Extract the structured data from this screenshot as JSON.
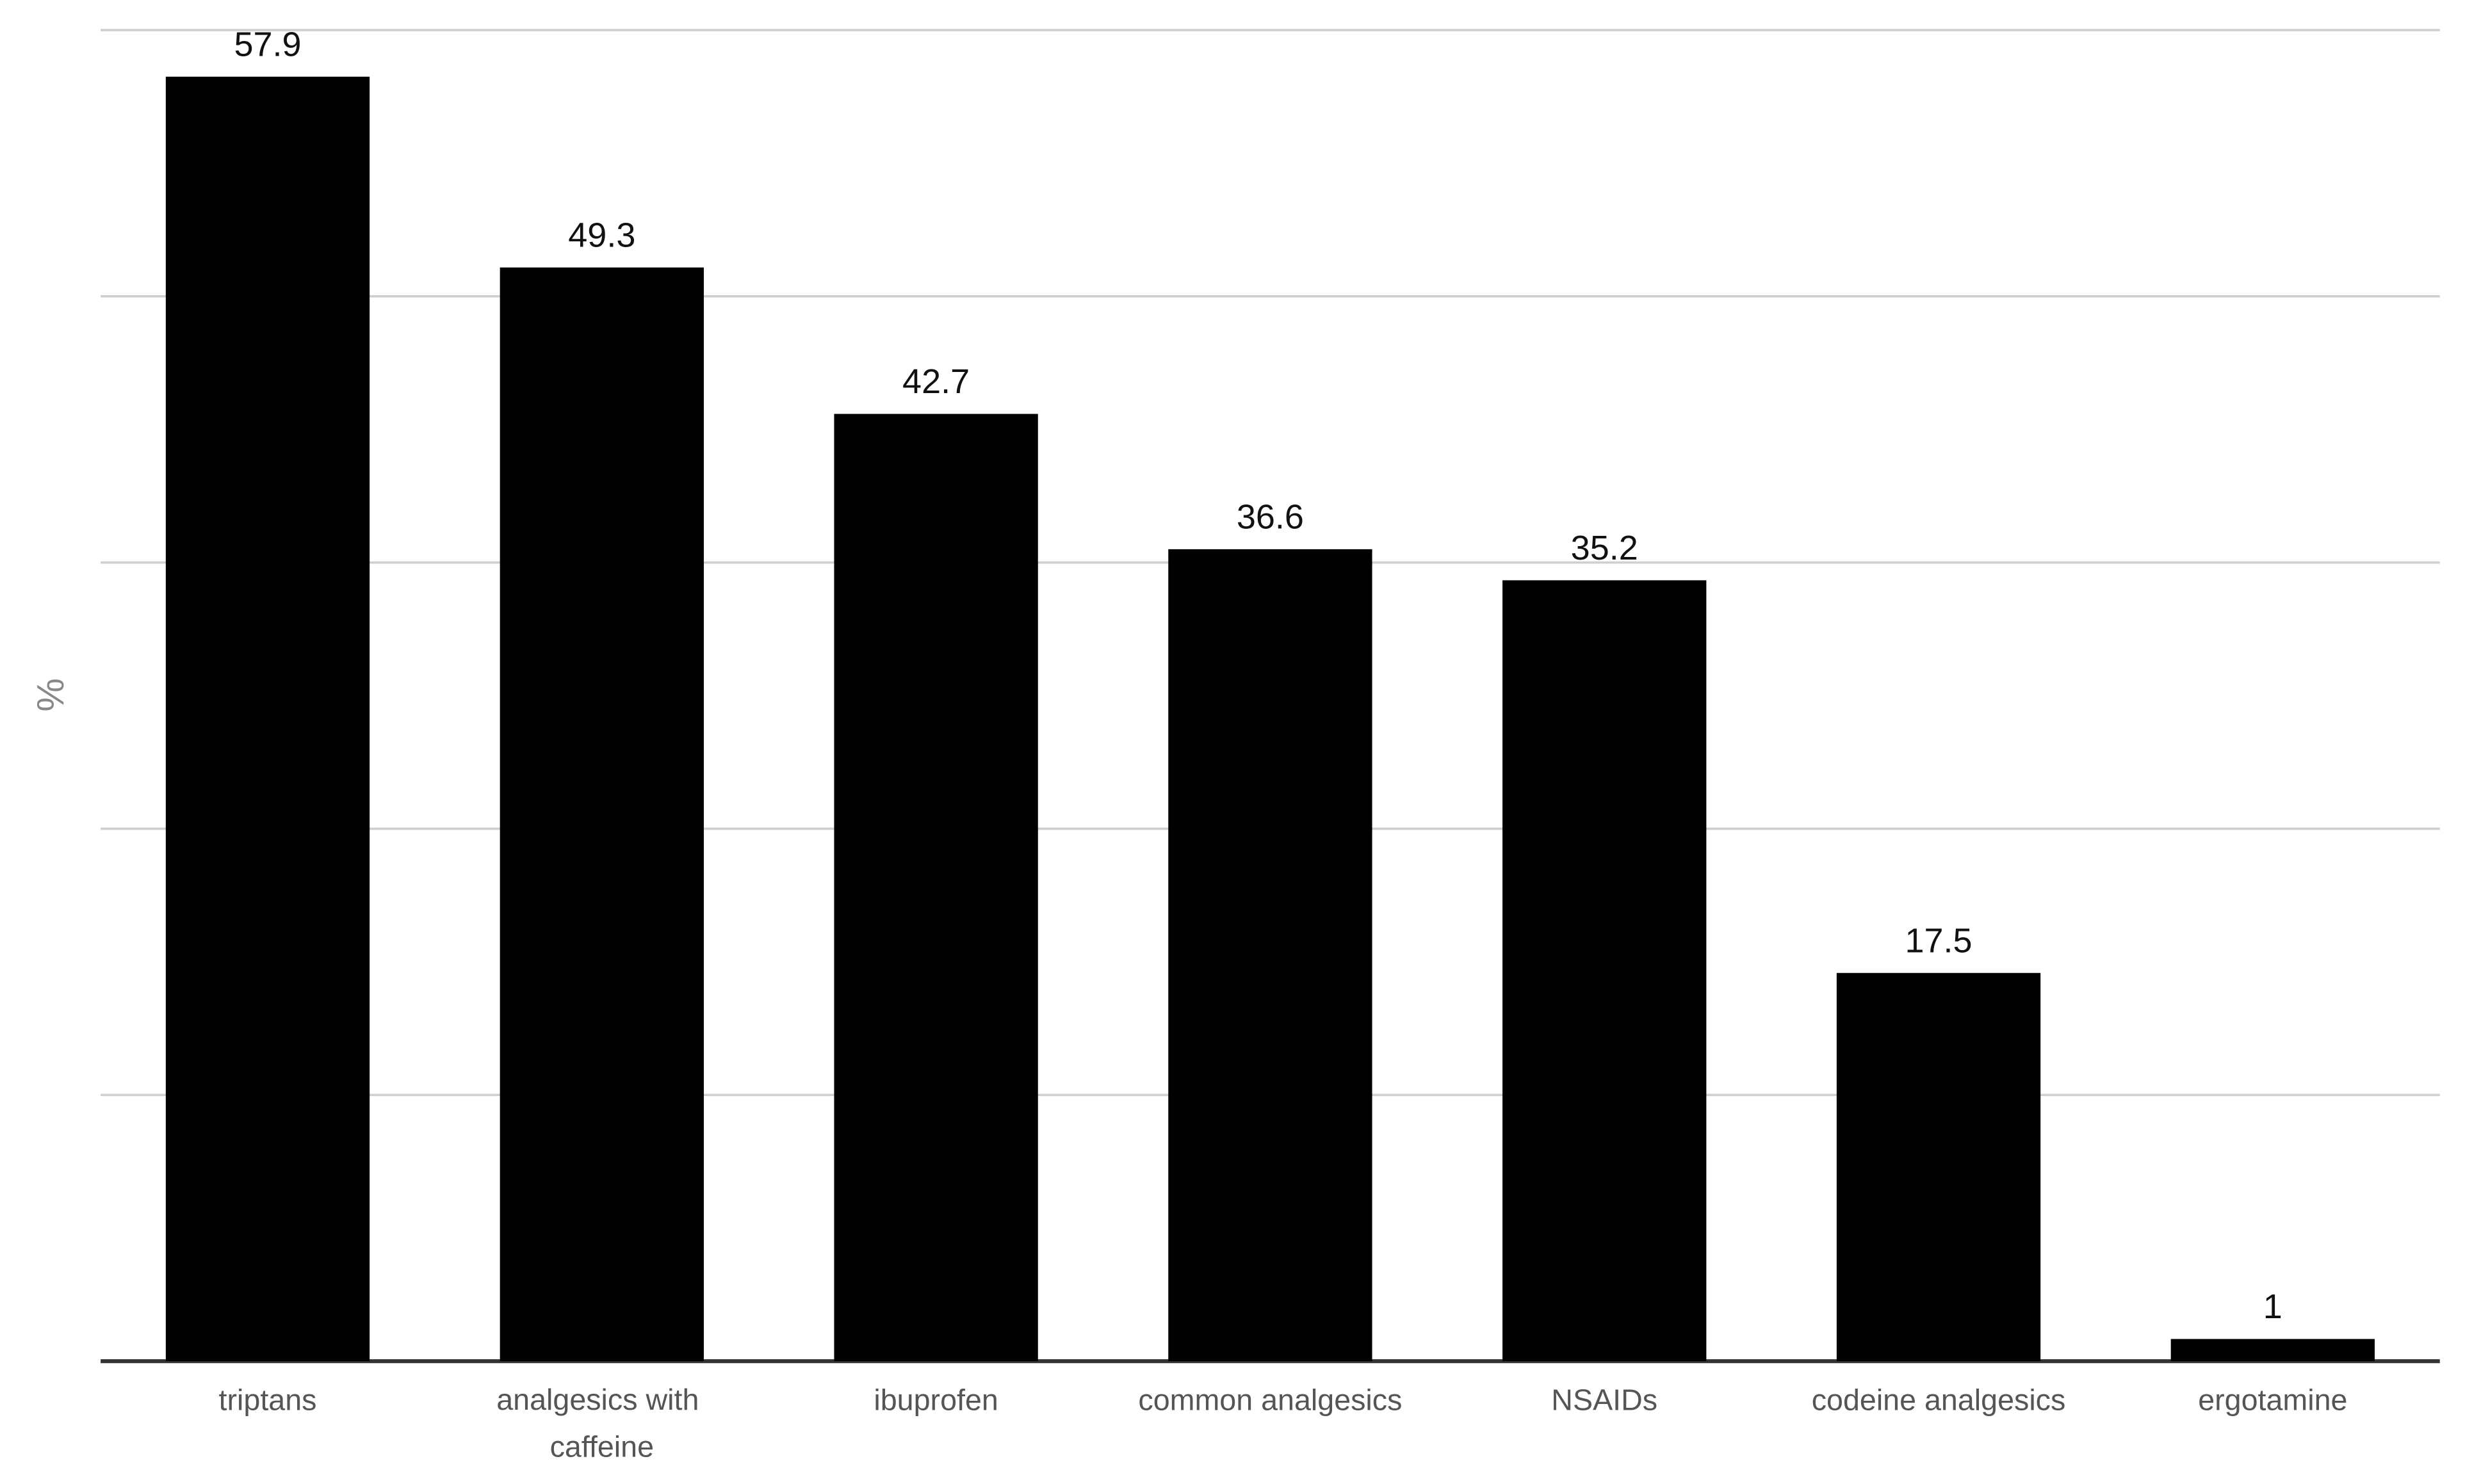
{
  "chart_data": {
    "type": "bar",
    "y_label": "%",
    "categories": [
      "triptans",
      "analgesics with caffeine",
      "ibuprofen",
      "common analgesics",
      "NSAIDs",
      "codeine analgesics",
      "ergotamine"
    ],
    "values": [
      57.9,
      49.3,
      42.7,
      36.6,
      35.2,
      17.5,
      1
    ],
    "color": "#000000",
    "ylim": [
      0,
      60
    ],
    "yticks": [
      0,
      12,
      24,
      36,
      48,
      60
    ],
    "grid": true
  }
}
